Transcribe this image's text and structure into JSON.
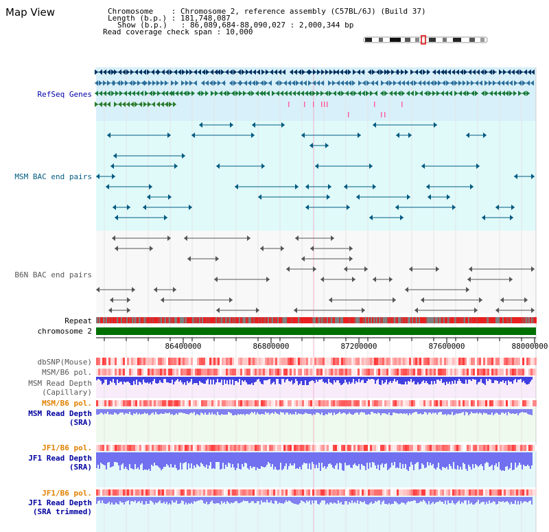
{
  "header": {
    "title": "Map View",
    "info_lines": [
      "Chromosome    : Chromosome 2, reference assembly (C57BL/6J) (Build 37)",
      "Length (b.p.) : 181,748,087",
      "Show (b.p.)   : 86,089,684-88,090,027 : 2,000,344 bp",
      "Read coverage check span : 10,000"
    ]
  },
  "tracks": {
    "refseq": "RefSeq Genes",
    "msm_bac": "MSM BAC end pairs",
    "b6n_bac": "B6N BAC end pairs",
    "repeat": "Repeat",
    "chromosome": "chromosome 2",
    "dbsnp": "dbSNP(Mouse)",
    "msm_b6_pol": "MSM/B6 pol.",
    "msm_depth_cap_1": "MSM Read Depth",
    "msm_depth_cap_2": "(Capillary)",
    "msm_b6_pol_2": "MSM/B6 pol.",
    "msm_depth_sra_1": "MSM Read Depth",
    "msm_depth_sra_2": "(SRA)",
    "jf1_b6_pol": "JF1/B6 pol.",
    "jf1_depth_1": "JF1 Read Depth",
    "jf1_depth_2": "(SRA)",
    "jf1_b6_pol_2": "JF1/B6 pol.",
    "jf1_trim_1": "JF1 Read Depth",
    "jf1_trim_2": "(SRA trimmed)"
  },
  "axis": {
    "ticks": [
      "86400000",
      "86800000",
      "87200000",
      "87600000",
      "88000000"
    ]
  },
  "colors": {
    "refseq_bg": "#d8f0fa",
    "bac_bg": "#e0fafa",
    "repeat_red": "#e82020",
    "chromosome_green": "#007000",
    "depth_blue": "#4040e0",
    "depth_lavender": "#8080f0",
    "pol_red": "#f04040"
  }
}
